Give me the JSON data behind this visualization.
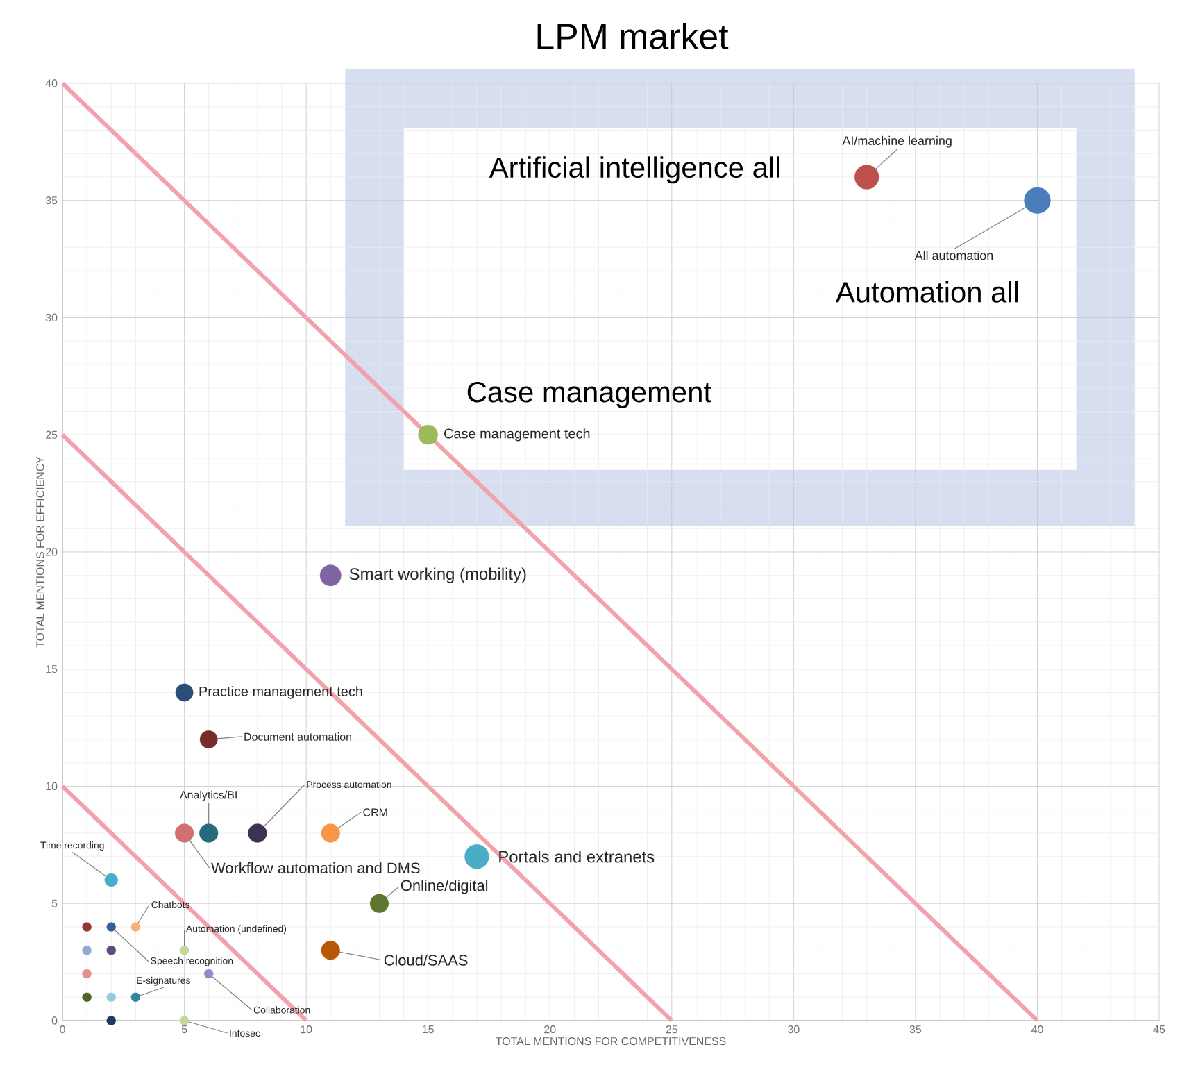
{
  "chart_data": {
    "type": "bubble",
    "title": "LPM market",
    "xlabel": "TOTAL MENTIONS FOR COMPETITIVENESS",
    "ylabel": "TOTAL MENTIONS FOR EFFICIENCY",
    "xlim": [
      0,
      45
    ],
    "ylim": [
      0,
      40
    ],
    "xticks": [
      0,
      5,
      10,
      15,
      20,
      25,
      30,
      35,
      40,
      45
    ],
    "yticks": [
      0,
      5,
      10,
      15,
      20,
      25,
      30,
      35,
      40
    ],
    "grid": true,
    "series": [
      {
        "x": [
          33,
          40,
          15,
          11,
          5,
          6,
          6,
          5,
          8,
          11,
          17,
          13,
          11,
          2,
          3,
          5,
          2,
          6,
          3,
          5,
          1,
          1,
          2,
          1,
          1,
          2,
          2
        ],
        "values": [
          36,
          35,
          25,
          19,
          14,
          12,
          8,
          8,
          8,
          8,
          7,
          5,
          3,
          6,
          4,
          3,
          4,
          2,
          1,
          0,
          4,
          3,
          3,
          2,
          1,
          1,
          0
        ],
        "sizes": [
          0.85,
          1,
          0.55,
          0.65,
          0.45,
          0.45,
          0.5,
          0.5,
          0.5,
          0.5,
          0.85,
          0.5,
          0.5,
          0.25,
          0.12,
          0.12,
          0.12,
          0.12,
          0.12,
          0.12,
          0.12,
          0.12,
          0.12,
          0.12,
          0.12,
          0.12,
          0.12
        ],
        "colors": [
          "#c0504d",
          "#4a7ebb",
          "#9bbb59",
          "#8064a2",
          "#2c4d75",
          "#772c2a",
          "#276a7c",
          "#d07070",
          "#3f3151",
          "#f79646",
          "#4bacc6",
          "#5f7530",
          "#b65708",
          "#4bacc6",
          "#f9b074",
          "#c3d69b",
          "#376092",
          "#8c8fc9",
          "#31859c",
          "#c3d69b",
          "#953735",
          "#93a9cf",
          "#604a7b",
          "#e6908e",
          "#4f6228",
          "#93cddd",
          "#1f3864"
        ]
      },
      {
        "type": "line",
        "color": "#f2a2aa",
        "x": [
          0,
          10
        ],
        "values": [
          10,
          0
        ]
      },
      {
        "type": "line",
        "color": "#f2a2aa",
        "x": [
          0,
          25
        ],
        "values": [
          25,
          0
        ]
      },
      {
        "type": "line",
        "color": "#f2a2aa",
        "x": [
          0,
          40
        ],
        "values": [
          40,
          0
        ]
      }
    ],
    "annotations": [
      {
        "text": "AI/machine learning",
        "x": 33,
        "y": 36
      },
      {
        "text": "All automation",
        "x": 40,
        "y": 35
      },
      {
        "text": "Case management tech",
        "x": 15,
        "y": 25
      },
      {
        "text": "Smart working (mobility)",
        "x": 11,
        "y": 19
      },
      {
        "text": "Practice management tech",
        "x": 5,
        "y": 14
      },
      {
        "text": "Document automation",
        "x": 6,
        "y": 12
      },
      {
        "text": "Analytics/BI",
        "x": 6,
        "y": 8
      },
      {
        "text": "Workflow automation and DMS",
        "x": 5,
        "y": 8
      },
      {
        "text": "Process automation",
        "x": 8,
        "y": 8
      },
      {
        "text": "CRM",
        "x": 11,
        "y": 8
      },
      {
        "text": "Portals and extranets",
        "x": 17,
        "y": 7
      },
      {
        "text": "Online/digital",
        "x": 13,
        "y": 5
      },
      {
        "text": "Cloud/SAAS",
        "x": 11,
        "y": 3
      },
      {
        "text": "Time recording",
        "x": 2,
        "y": 6
      },
      {
        "text": "Chatbots",
        "x": 3,
        "y": 4
      },
      {
        "text": "Automation (undefined)",
        "x": 5,
        "y": 3
      },
      {
        "text": "Speech recognition",
        "x": 2,
        "y": 4
      },
      {
        "text": "Collaboration",
        "x": 6,
        "y": 2
      },
      {
        "text": "E-signatures",
        "x": 3,
        "y": 1
      },
      {
        "text": "Infosec",
        "x": 5,
        "y": 0
      },
      "Artificial intelligence all",
      "Automation all",
      "Case management"
    ]
  }
}
